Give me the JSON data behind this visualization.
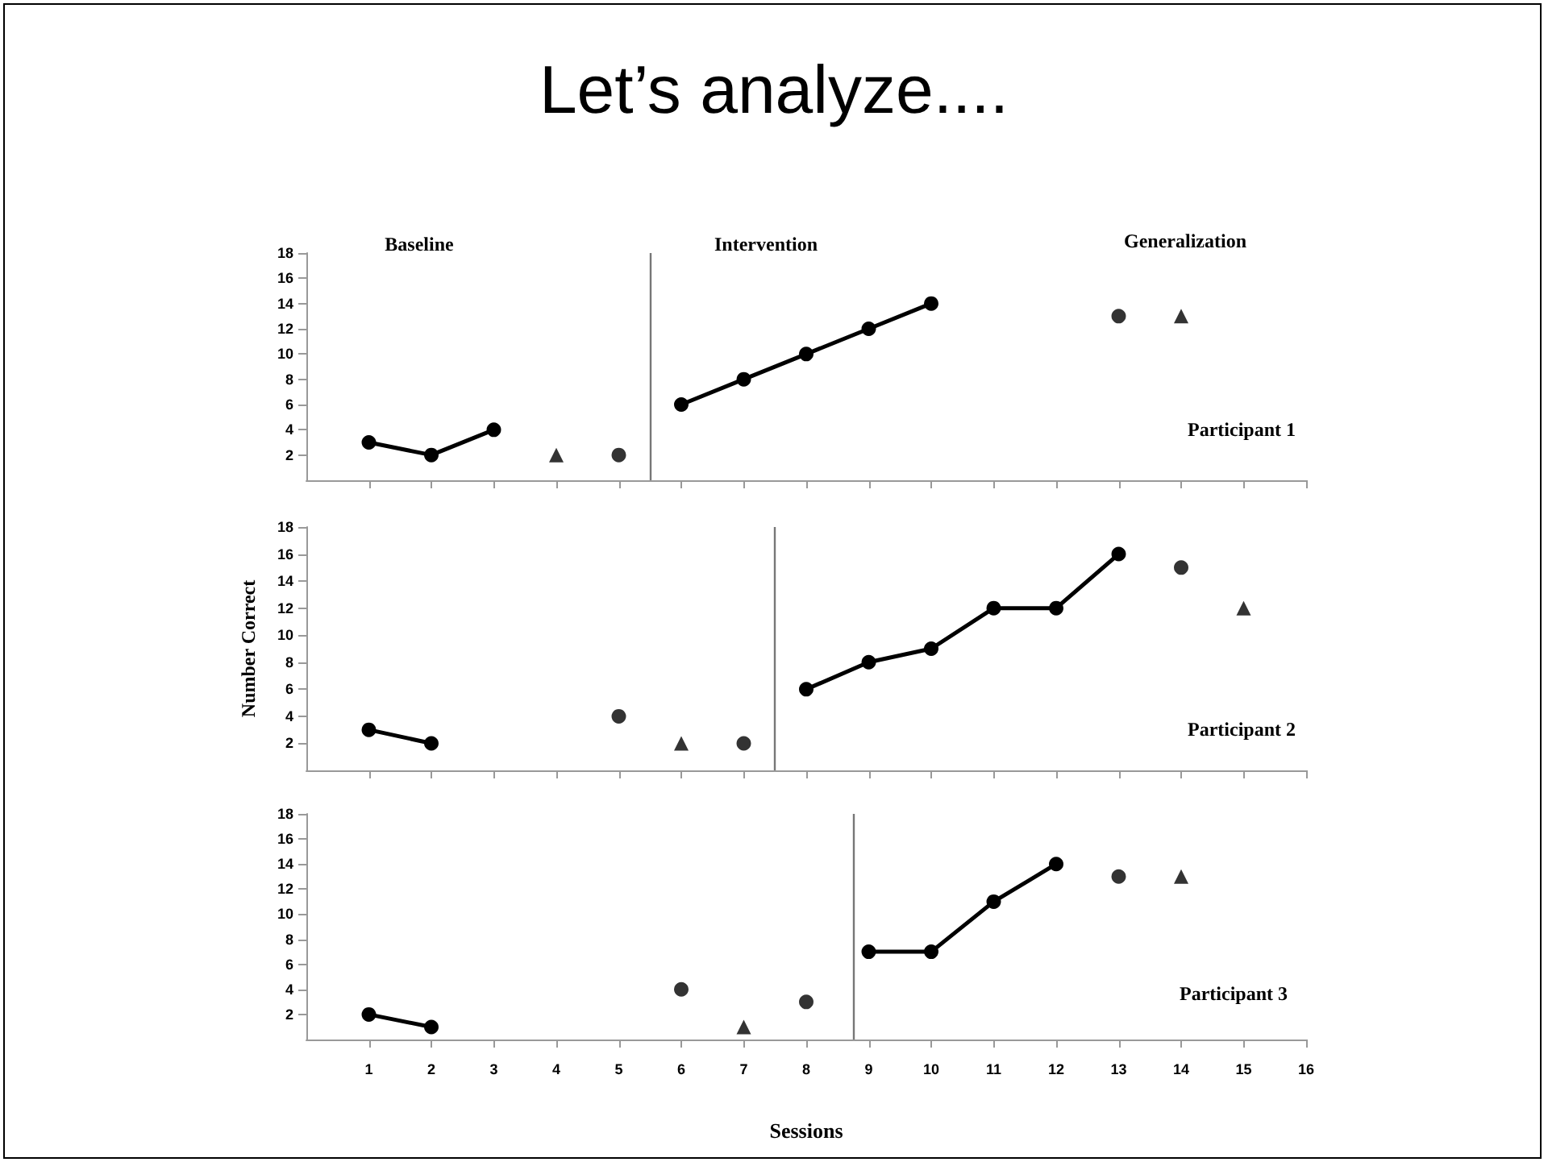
{
  "chart_data": [
    {
      "type": "line",
      "title": "Let’s analyze....",
      "annotations": [
        "Baseline",
        "Intervention",
        "Generalization",
        "Participant 1"
      ],
      "xlim": [
        0,
        16
      ],
      "xticks": [
        1,
        2,
        3,
        4,
        5,
        6,
        7,
        8,
        9,
        10,
        11,
        12,
        13,
        14,
        15,
        16
      ],
      "ylim": [
        0,
        18
      ],
      "yticks": [
        2,
        4,
        6,
        8,
        10,
        12,
        14,
        16,
        18
      ],
      "tick_labels": "y",
      "ref_lines": [
        {
          "axis": "x",
          "value": 5.5,
          "color": "#777777"
        }
      ],
      "series": [
        {
          "marker": "circle",
          "color": "#000000",
          "x": [
            1,
            2,
            3
          ],
          "values": [
            3,
            2,
            4
          ]
        },
        {
          "type": "scatter",
          "marker": "triangle",
          "color": "#000000",
          "x": [
            4
          ],
          "values": [
            2
          ]
        },
        {
          "type": "scatter",
          "marker": "circle",
          "color": "#000000",
          "x": [
            5
          ],
          "values": [
            2
          ]
        },
        {
          "marker": "circle",
          "color": "#000000",
          "x": [
            6,
            7,
            8,
            9,
            10
          ],
          "values": [
            6,
            8,
            10,
            12,
            14
          ]
        },
        {
          "type": "scatter",
          "marker": "circle",
          "color": "#000000",
          "x": [
            13
          ],
          "values": [
            13
          ]
        },
        {
          "type": "scatter",
          "marker": "triangle",
          "color": "#000000",
          "x": [
            14
          ],
          "values": [
            13
          ]
        }
      ]
    },
    {
      "type": "line",
      "ylabel": "Number Correct",
      "annotations": [
        "Participant 2"
      ],
      "xlim": [
        0,
        16
      ],
      "xticks": [
        1,
        2,
        3,
        4,
        5,
        6,
        7,
        8,
        9,
        10,
        11,
        12,
        13,
        14,
        15,
        16
      ],
      "ylim": [
        0,
        18
      ],
      "yticks": [
        2,
        4,
        6,
        8,
        10,
        12,
        14,
        16,
        18
      ],
      "tick_labels": "y",
      "ref_lines": [
        {
          "axis": "x",
          "value": 7.5,
          "color": "#777777"
        }
      ],
      "series": [
        {
          "marker": "circle",
          "color": "#000000",
          "x": [
            1,
            2
          ],
          "values": [
            3,
            2
          ]
        },
        {
          "type": "scatter",
          "marker": "circle",
          "color": "#000000",
          "x": [
            5
          ],
          "values": [
            4
          ]
        },
        {
          "type": "scatter",
          "marker": "triangle",
          "color": "#000000",
          "x": [
            6
          ],
          "values": [
            2
          ]
        },
        {
          "type": "scatter",
          "marker": "circle",
          "color": "#000000",
          "x": [
            7
          ],
          "values": [
            2
          ]
        },
        {
          "marker": "circle",
          "color": "#000000",
          "x": [
            8,
            9,
            10,
            11,
            12,
            13
          ],
          "values": [
            6,
            8,
            9,
            12,
            12,
            16
          ]
        },
        {
          "type": "scatter",
          "marker": "circle",
          "color": "#000000",
          "x": [
            14
          ],
          "values": [
            15
          ]
        },
        {
          "type": "scatter",
          "marker": "triangle",
          "color": "#000000",
          "x": [
            15
          ],
          "values": [
            12
          ]
        }
      ]
    },
    {
      "type": "line",
      "xlabel": "Sessions",
      "annotations": [
        "Participant 3"
      ],
      "xlim": [
        0,
        16
      ],
      "xticks": [
        1,
        2,
        3,
        4,
        5,
        6,
        7,
        8,
        9,
        10,
        11,
        12,
        13,
        14,
        15,
        16
      ],
      "ylim": [
        0,
        18
      ],
      "yticks": [
        2,
        4,
        6,
        8,
        10,
        12,
        14,
        16,
        18
      ],
      "ref_lines": [
        {
          "axis": "x",
          "value": 8.75,
          "color": "#777777"
        }
      ],
      "series": [
        {
          "marker": "circle",
          "color": "#000000",
          "x": [
            1,
            2
          ],
          "values": [
            2,
            1
          ]
        },
        {
          "type": "scatter",
          "marker": "circle",
          "color": "#000000",
          "x": [
            6
          ],
          "values": [
            4
          ]
        },
        {
          "type": "scatter",
          "marker": "triangle",
          "color": "#000000",
          "x": [
            7
          ],
          "values": [
            1
          ]
        },
        {
          "type": "scatter",
          "marker": "circle",
          "color": "#000000",
          "x": [
            8
          ],
          "values": [
            3
          ]
        },
        {
          "marker": "circle",
          "color": "#000000",
          "x": [
            9,
            10,
            11,
            12
          ],
          "values": [
            7,
            7,
            11,
            14
          ]
        },
        {
          "type": "scatter",
          "marker": "circle",
          "color": "#000000",
          "x": [
            13
          ],
          "values": [
            13
          ]
        },
        {
          "type": "scatter",
          "marker": "triangle",
          "color": "#000000",
          "x": [
            14
          ],
          "values": [
            13
          ]
        }
      ]
    }
  ]
}
